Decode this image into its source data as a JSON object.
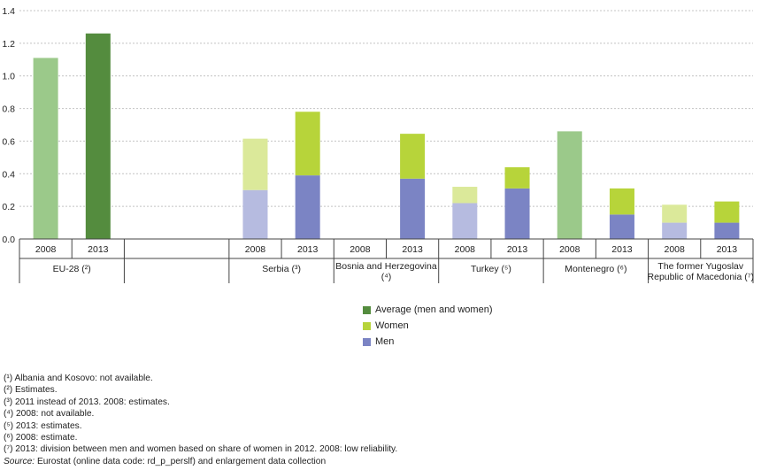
{
  "chart_data": {
    "type": "bar",
    "stacked": true,
    "ylim": [
      0,
      1.4
    ],
    "yticks": [
      "0.0",
      "0.2",
      "0.4",
      "0.6",
      "0.8",
      "1.0",
      "1.2",
      "1.4"
    ],
    "grid": true,
    "groups": [
      {
        "label": "EU-28 (²)",
        "bars": [
          {
            "year": "2008",
            "kind": "average",
            "value": 1.11
          },
          {
            "year": "2013",
            "kind": "average",
            "value": 1.26
          }
        ]
      },
      {
        "label": "",
        "bars": []
      },
      {
        "label": "Serbia (³)",
        "bars": [
          {
            "year": "2008",
            "kind": "split",
            "men": 0.3,
            "women": 0.315
          },
          {
            "year": "2013",
            "kind": "split",
            "men": 0.39,
            "women": 0.39
          }
        ]
      },
      {
        "label": "Bosnia and Herzegovina (⁴)",
        "bars": [
          {
            "year": "2008",
            "kind": "none"
          },
          {
            "year": "2013",
            "kind": "split",
            "men": 0.37,
            "women": 0.275
          }
        ]
      },
      {
        "label": "Turkey (⁵)",
        "bars": [
          {
            "year": "2008",
            "kind": "split",
            "men": 0.22,
            "women": 0.1
          },
          {
            "year": "2013",
            "kind": "split",
            "men": 0.31,
            "women": 0.13
          }
        ]
      },
      {
        "label": "Montenegro (⁶)",
        "bars": [
          {
            "year": "2008",
            "kind": "average",
            "value": 0.66
          },
          {
            "year": "2013",
            "kind": "split",
            "men": 0.15,
            "women": 0.16
          }
        ]
      },
      {
        "label": "The former Yugoslav Republic of Macedonia (⁷)",
        "bars": [
          {
            "year": "2008",
            "kind": "split",
            "men": 0.1,
            "women": 0.11
          },
          {
            "year": "2013",
            "kind": "split",
            "men": 0.1,
            "women": 0.13
          }
        ]
      }
    ],
    "legend": [
      {
        "name": "Average (men and women)",
        "color": "#548c3e"
      },
      {
        "name": "Women",
        "color": "#b7d43a"
      },
      {
        "name": "Men",
        "color": "#7b84c4"
      }
    ],
    "colors": {
      "average_2013": "#548c3e",
      "average_2008": "#9bc98a",
      "women_2013": "#b7d43a",
      "women_2008": "#dbe99a",
      "men_2013": "#7b84c4",
      "men_2008": "#b6bbe0"
    },
    "legend_placement": "bottom-center"
  },
  "notes": [
    "(¹) Albania and Kosovo: not available.",
    "(²) Estimates.",
    "(³) 2011 instead of 2013. 2008: estimates.",
    "(⁴) 2008: not available.",
    "(⁵) 2013: estimates.",
    "(⁶) 2008: estimate.",
    "(⁷) 2013: division between men and women based on share of women in 2012. 2008: low reliability."
  ],
  "source": {
    "label": "Source:",
    "text": " Eurostat (online data code: rd_p_perslf) and enlargement data collection"
  }
}
